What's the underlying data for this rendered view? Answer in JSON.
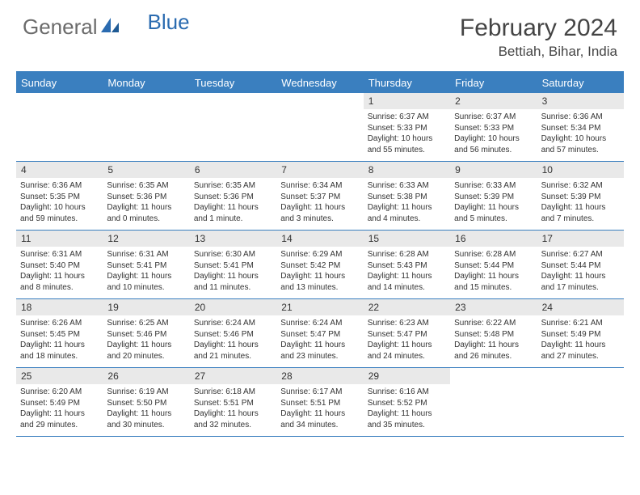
{
  "logo": {
    "part1": "General",
    "part2": "Blue"
  },
  "title": "February 2024",
  "location": "Bettiah, Bihar, India",
  "colors": {
    "header_bg": "#3a7fbf",
    "header_text": "#ffffff",
    "daynum_bg": "#e9e9e9",
    "rule": "#3a7fbf",
    "logo_gray": "#6b6b6b",
    "logo_blue": "#2a6bb0"
  },
  "weekdays": [
    "Sunday",
    "Monday",
    "Tuesday",
    "Wednesday",
    "Thursday",
    "Friday",
    "Saturday"
  ],
  "weeks": [
    [
      null,
      null,
      null,
      null,
      {
        "n": "1",
        "sr": "6:37 AM",
        "ss": "5:33 PM",
        "dl": "10 hours and 55 minutes."
      },
      {
        "n": "2",
        "sr": "6:37 AM",
        "ss": "5:33 PM",
        "dl": "10 hours and 56 minutes."
      },
      {
        "n": "3",
        "sr": "6:36 AM",
        "ss": "5:34 PM",
        "dl": "10 hours and 57 minutes."
      }
    ],
    [
      {
        "n": "4",
        "sr": "6:36 AM",
        "ss": "5:35 PM",
        "dl": "10 hours and 59 minutes."
      },
      {
        "n": "5",
        "sr": "6:35 AM",
        "ss": "5:36 PM",
        "dl": "11 hours and 0 minutes."
      },
      {
        "n": "6",
        "sr": "6:35 AM",
        "ss": "5:36 PM",
        "dl": "11 hours and 1 minute."
      },
      {
        "n": "7",
        "sr": "6:34 AM",
        "ss": "5:37 PM",
        "dl": "11 hours and 3 minutes."
      },
      {
        "n": "8",
        "sr": "6:33 AM",
        "ss": "5:38 PM",
        "dl": "11 hours and 4 minutes."
      },
      {
        "n": "9",
        "sr": "6:33 AM",
        "ss": "5:39 PM",
        "dl": "11 hours and 5 minutes."
      },
      {
        "n": "10",
        "sr": "6:32 AM",
        "ss": "5:39 PM",
        "dl": "11 hours and 7 minutes."
      }
    ],
    [
      {
        "n": "11",
        "sr": "6:31 AM",
        "ss": "5:40 PM",
        "dl": "11 hours and 8 minutes."
      },
      {
        "n": "12",
        "sr": "6:31 AM",
        "ss": "5:41 PM",
        "dl": "11 hours and 10 minutes."
      },
      {
        "n": "13",
        "sr": "6:30 AM",
        "ss": "5:41 PM",
        "dl": "11 hours and 11 minutes."
      },
      {
        "n": "14",
        "sr": "6:29 AM",
        "ss": "5:42 PM",
        "dl": "11 hours and 13 minutes."
      },
      {
        "n": "15",
        "sr": "6:28 AM",
        "ss": "5:43 PM",
        "dl": "11 hours and 14 minutes."
      },
      {
        "n": "16",
        "sr": "6:28 AM",
        "ss": "5:44 PM",
        "dl": "11 hours and 15 minutes."
      },
      {
        "n": "17",
        "sr": "6:27 AM",
        "ss": "5:44 PM",
        "dl": "11 hours and 17 minutes."
      }
    ],
    [
      {
        "n": "18",
        "sr": "6:26 AM",
        "ss": "5:45 PM",
        "dl": "11 hours and 18 minutes."
      },
      {
        "n": "19",
        "sr": "6:25 AM",
        "ss": "5:46 PM",
        "dl": "11 hours and 20 minutes."
      },
      {
        "n": "20",
        "sr": "6:24 AM",
        "ss": "5:46 PM",
        "dl": "11 hours and 21 minutes."
      },
      {
        "n": "21",
        "sr": "6:24 AM",
        "ss": "5:47 PM",
        "dl": "11 hours and 23 minutes."
      },
      {
        "n": "22",
        "sr": "6:23 AM",
        "ss": "5:47 PM",
        "dl": "11 hours and 24 minutes."
      },
      {
        "n": "23",
        "sr": "6:22 AM",
        "ss": "5:48 PM",
        "dl": "11 hours and 26 minutes."
      },
      {
        "n": "24",
        "sr": "6:21 AM",
        "ss": "5:49 PM",
        "dl": "11 hours and 27 minutes."
      }
    ],
    [
      {
        "n": "25",
        "sr": "6:20 AM",
        "ss": "5:49 PM",
        "dl": "11 hours and 29 minutes."
      },
      {
        "n": "26",
        "sr": "6:19 AM",
        "ss": "5:50 PM",
        "dl": "11 hours and 30 minutes."
      },
      {
        "n": "27",
        "sr": "6:18 AM",
        "ss": "5:51 PM",
        "dl": "11 hours and 32 minutes."
      },
      {
        "n": "28",
        "sr": "6:17 AM",
        "ss": "5:51 PM",
        "dl": "11 hours and 34 minutes."
      },
      {
        "n": "29",
        "sr": "6:16 AM",
        "ss": "5:52 PM",
        "dl": "11 hours and 35 minutes."
      },
      null,
      null
    ]
  ],
  "labels": {
    "sunrise": "Sunrise:",
    "sunset": "Sunset:",
    "daylight": "Daylight:"
  }
}
